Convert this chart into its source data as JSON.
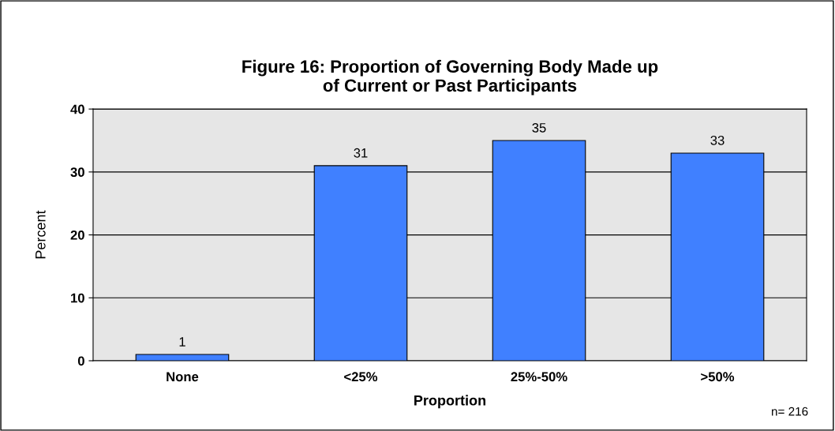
{
  "chart_data": {
    "type": "bar",
    "title": "Figure 16: Proportion of Governing Body Made up\nof Current or Past Participants",
    "xlabel": "Proportion",
    "ylabel": "Percent",
    "categories": [
      "None",
      "<25%",
      "25%-50%",
      ">50%"
    ],
    "values": [
      1,
      31,
      35,
      33
    ],
    "color": "#4080ff",
    "ylim": [
      0,
      40
    ],
    "yticks": [
      0,
      10,
      20,
      30,
      40
    ],
    "grid": "y",
    "data_labels": true,
    "annotations": [
      "n= 216"
    ]
  }
}
